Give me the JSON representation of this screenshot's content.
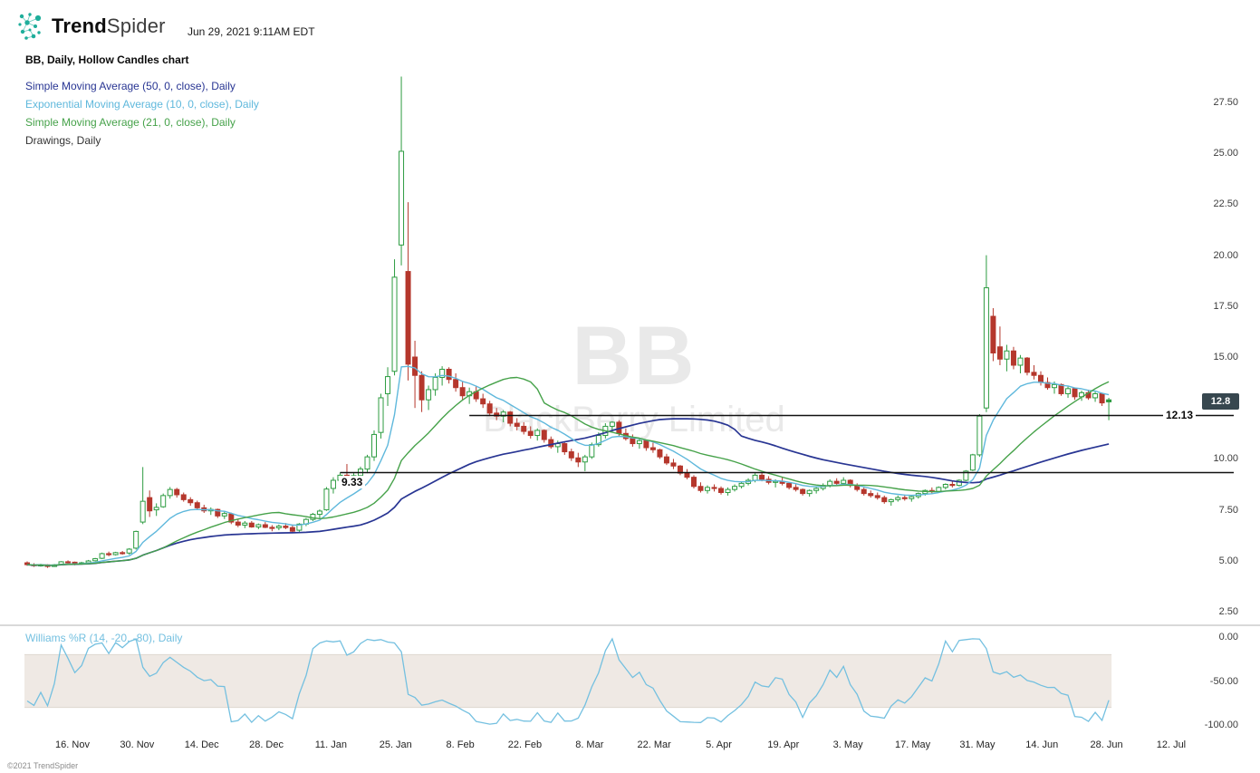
{
  "header": {
    "brand_bold": "Trend",
    "brand_light": "Spider",
    "timestamp": "Jun 29, 2021 9:11AM EDT"
  },
  "footer": {
    "copyright": "©2021 TrendSpider"
  },
  "colors": {
    "up": "#2d9c41",
    "down": "#b5372c",
    "drawing": "#111111",
    "wr_line": "#74c0e0",
    "wr_band": "#efe9e4",
    "tag_bg": "#37474f",
    "brand": "#1fae9b",
    "watermark": "#e9e9e9"
  },
  "chart_data": {
    "type": "candlestick",
    "style": "Hollow Candles",
    "symbol": "BB",
    "company": "BlackBerry Limited",
    "timeframe": "Daily",
    "title": "BB, Daily, Hollow Candles chart",
    "legend": [
      {
        "label": "Simple Moving Average (50, 0, close), Daily",
        "color": "#283593",
        "type": "sma",
        "period": 50
      },
      {
        "label": "Exponential Moving Average (10, 0, close), Daily",
        "color": "#5fb8dc",
        "type": "ema",
        "period": 10
      },
      {
        "label": "Simple Moving Average (21, 0, close), Daily",
        "color": "#46a24a",
        "type": "sma",
        "period": 21
      },
      {
        "label": "Drawings, Daily",
        "color": "#333333",
        "type": "drawings"
      }
    ],
    "ylim": [
      2.5,
      27.5
    ],
    "y_tick_labels": [
      "27.50",
      "25.00",
      "22.50",
      "20.00",
      "17.50",
      "15.00",
      "10.00",
      "7.50",
      "5.00",
      "2.50"
    ],
    "y_tick_values": [
      27.5,
      25,
      22.5,
      20,
      17.5,
      15,
      10,
      7.5,
      5,
      2.5
    ],
    "x_tick_labels": [
      "16. Nov",
      "30. Nov",
      "14. Dec",
      "28. Dec",
      "11. Jan",
      "25. Jan",
      "8. Feb",
      "22. Feb",
      "8. Mar",
      "22. Mar",
      "5. Apr",
      "19. Apr",
      "3. May",
      "17. May",
      "31. May",
      "14. Jun",
      "28. Jun",
      "12. Jul"
    ],
    "last_price": 12.8,
    "last_price_label": "12.8",
    "drawings": [
      {
        "label": "12.13",
        "level": 12.13,
        "from_index": 65
      },
      {
        "label": "9.33",
        "level": 9.33,
        "from_index": 46
      }
    ],
    "indicator": {
      "label": "Williams %R (14, -20, -80), Daily",
      "type": "williams_r",
      "period": 14,
      "band": [
        -20,
        -80
      ],
      "ylim": [
        0,
        -100
      ],
      "y_tick_labels": [
        "0.00",
        "-50.00",
        "-100.00"
      ],
      "y_tick_values": [
        0,
        -50,
        -100
      ]
    },
    "candles": [
      [
        4.9,
        4.97,
        4.75,
        4.81
      ],
      [
        4.81,
        4.88,
        4.7,
        4.76
      ],
      [
        4.76,
        4.85,
        4.71,
        4.8
      ],
      [
        4.8,
        4.83,
        4.65,
        4.72
      ],
      [
        4.72,
        4.84,
        4.7,
        4.8
      ],
      [
        4.82,
        4.98,
        4.8,
        4.95
      ],
      [
        4.95,
        5.02,
        4.86,
        4.93
      ],
      [
        4.93,
        4.96,
        4.78,
        4.87
      ],
      [
        4.87,
        4.95,
        4.81,
        4.9
      ],
      [
        4.9,
        5.04,
        4.88,
        4.99
      ],
      [
        5.0,
        5.14,
        4.96,
        5.1
      ],
      [
        5.12,
        5.4,
        5.08,
        5.35
      ],
      [
        5.35,
        5.45,
        5.22,
        5.3
      ],
      [
        5.3,
        5.44,
        5.26,
        5.4
      ],
      [
        5.4,
        5.48,
        5.3,
        5.38
      ],
      [
        5.38,
        5.62,
        5.3,
        5.57
      ],
      [
        5.62,
        6.48,
        5.55,
        6.44
      ],
      [
        6.9,
        9.6,
        6.8,
        7.92
      ],
      [
        8.1,
        8.45,
        7.15,
        7.45
      ],
      [
        7.5,
        7.82,
        7.2,
        7.62
      ],
      [
        7.65,
        8.3,
        7.6,
        8.2
      ],
      [
        8.2,
        8.62,
        8.05,
        8.5
      ],
      [
        8.5,
        8.58,
        8.1,
        8.24
      ],
      [
        8.24,
        8.35,
        7.9,
        8.0
      ],
      [
        8.0,
        8.12,
        7.7,
        7.85
      ],
      [
        7.85,
        7.95,
        7.5,
        7.6
      ],
      [
        7.6,
        7.75,
        7.35,
        7.45
      ],
      [
        7.45,
        7.62,
        7.25,
        7.52
      ],
      [
        7.52,
        7.56,
        7.1,
        7.2
      ],
      [
        7.2,
        7.42,
        7.05,
        7.32
      ],
      [
        7.3,
        7.36,
        6.8,
        6.9
      ],
      [
        6.9,
        7.05,
        6.65,
        6.75
      ],
      [
        6.75,
        6.95,
        6.6,
        6.85
      ],
      [
        6.85,
        6.95,
        6.62,
        6.66
      ],
      [
        6.66,
        6.83,
        6.55,
        6.77
      ],
      [
        6.77,
        6.9,
        6.6,
        6.64
      ],
      [
        6.64,
        6.75,
        6.45,
        6.62
      ],
      [
        6.62,
        6.78,
        6.5,
        6.7
      ],
      [
        6.7,
        6.85,
        6.55,
        6.63
      ],
      [
        6.63,
        6.78,
        6.35,
        6.45
      ],
      [
        6.5,
        6.85,
        6.42,
        6.8
      ],
      [
        6.8,
        7.1,
        6.7,
        7.03
      ],
      [
        7.03,
        7.35,
        6.95,
        7.28
      ],
      [
        7.28,
        7.52,
        7.1,
        7.44
      ],
      [
        7.5,
        8.62,
        7.45,
        8.52
      ],
      [
        8.55,
        9.1,
        8.3,
        8.95
      ],
      [
        8.95,
        9.33,
        8.6,
        9.2
      ],
      [
        9.2,
        9.75,
        8.9,
        9.05
      ],
      [
        9.05,
        9.3,
        8.7,
        9.18
      ],
      [
        9.18,
        9.62,
        9.0,
        9.5
      ],
      [
        9.5,
        10.2,
        9.3,
        10.1
      ],
      [
        10.1,
        11.4,
        9.9,
        11.2
      ],
      [
        11.3,
        13.2,
        11.0,
        13.0
      ],
      [
        13.2,
        14.5,
        12.6,
        14.04
      ],
      [
        14.3,
        19.8,
        14.1,
        18.92
      ],
      [
        20.5,
        28.77,
        19.5,
        25.1
      ],
      [
        19.2,
        22.6,
        13.85,
        14.65
      ],
      [
        15.0,
        15.8,
        12.5,
        14.1
      ],
      [
        14.1,
        14.3,
        12.3,
        12.9
      ],
      [
        12.9,
        13.6,
        12.4,
        13.4
      ],
      [
        13.4,
        14.2,
        13.1,
        14.0
      ],
      [
        14.0,
        14.55,
        13.6,
        14.4
      ],
      [
        14.4,
        14.5,
        13.7,
        13.9
      ],
      [
        13.9,
        14.2,
        13.3,
        13.5
      ],
      [
        13.5,
        13.8,
        12.9,
        13.1
      ],
      [
        13.1,
        13.5,
        12.7,
        13.3
      ],
      [
        13.3,
        13.6,
        12.8,
        12.95
      ],
      [
        12.95,
        13.2,
        12.5,
        12.7
      ],
      [
        12.7,
        12.85,
        12.1,
        12.25
      ],
      [
        12.25,
        12.5,
        11.9,
        12.1
      ],
      [
        12.1,
        12.4,
        11.8,
        12.3
      ],
      [
        12.3,
        12.35,
        11.6,
        11.75
      ],
      [
        11.75,
        12.0,
        11.4,
        11.6
      ],
      [
        11.6,
        11.8,
        11.2,
        11.35
      ],
      [
        11.35,
        11.6,
        11.0,
        11.15
      ],
      [
        11.15,
        11.5,
        10.9,
        11.4
      ],
      [
        11.4,
        11.45,
        10.8,
        10.95
      ],
      [
        10.95,
        11.1,
        10.5,
        10.6
      ],
      [
        10.6,
        10.9,
        10.3,
        10.75
      ],
      [
        10.75,
        10.8,
        10.2,
        10.35
      ],
      [
        10.35,
        10.5,
        9.9,
        10.05
      ],
      [
        10.05,
        10.3,
        9.6,
        9.85
      ],
      [
        9.85,
        10.2,
        9.4,
        10.1
      ],
      [
        10.1,
        10.8,
        10.0,
        10.7
      ],
      [
        10.7,
        11.3,
        10.6,
        11.15
      ],
      [
        11.15,
        11.75,
        11.0,
        11.6
      ],
      [
        11.6,
        11.85,
        11.3,
        11.8
      ],
      [
        11.8,
        11.9,
        11.1,
        11.25
      ],
      [
        11.25,
        11.5,
        10.9,
        11.0
      ],
      [
        11.0,
        11.2,
        10.6,
        10.75
      ],
      [
        10.75,
        11.0,
        10.5,
        10.9
      ],
      [
        10.9,
        10.95,
        10.4,
        10.55
      ],
      [
        10.55,
        10.8,
        10.3,
        10.45
      ],
      [
        10.45,
        10.5,
        10.0,
        10.1
      ],
      [
        10.1,
        10.25,
        9.7,
        9.8
      ],
      [
        9.8,
        10.0,
        9.5,
        9.65
      ],
      [
        9.65,
        9.7,
        9.2,
        9.3
      ],
      [
        9.3,
        9.5,
        9.0,
        9.1
      ],
      [
        9.1,
        9.2,
        8.55,
        8.65
      ],
      [
        8.65,
        8.85,
        8.35,
        8.45
      ],
      [
        8.45,
        8.7,
        8.3,
        8.6
      ],
      [
        8.6,
        8.75,
        8.4,
        8.55
      ],
      [
        8.55,
        8.65,
        8.25,
        8.35
      ],
      [
        8.35,
        8.6,
        8.2,
        8.5
      ],
      [
        8.5,
        8.75,
        8.4,
        8.65
      ],
      [
        8.65,
        8.9,
        8.55,
        8.8
      ],
      [
        8.8,
        9.05,
        8.7,
        8.95
      ],
      [
        8.95,
        9.3,
        8.85,
        9.2
      ],
      [
        9.2,
        9.35,
        8.9,
        9.0
      ],
      [
        9.0,
        9.15,
        8.75,
        8.85
      ],
      [
        8.85,
        9.0,
        8.6,
        8.9
      ],
      [
        8.9,
        9.1,
        8.7,
        8.8
      ],
      [
        8.8,
        8.85,
        8.5,
        8.6
      ],
      [
        8.6,
        8.75,
        8.4,
        8.5
      ],
      [
        8.5,
        8.55,
        8.2,
        8.3
      ],
      [
        8.3,
        8.5,
        8.15,
        8.45
      ],
      [
        8.45,
        8.65,
        8.3,
        8.55
      ],
      [
        8.55,
        8.8,
        8.45,
        8.7
      ],
      [
        8.7,
        9.0,
        8.6,
        8.9
      ],
      [
        8.9,
        9.05,
        8.7,
        8.8
      ],
      [
        8.8,
        9.1,
        8.7,
        8.95
      ],
      [
        8.95,
        9.0,
        8.6,
        8.7
      ],
      [
        8.7,
        8.8,
        8.4,
        8.5
      ],
      [
        8.5,
        8.6,
        8.2,
        8.3
      ],
      [
        8.3,
        8.45,
        8.1,
        8.2
      ],
      [
        8.2,
        8.35,
        8.0,
        8.1
      ],
      [
        8.1,
        8.2,
        7.8,
        7.9
      ],
      [
        7.9,
        8.05,
        7.7,
        8.0
      ],
      [
        8.0,
        8.2,
        7.9,
        8.1
      ],
      [
        8.1,
        8.25,
        7.95,
        8.05
      ],
      [
        8.05,
        8.2,
        7.9,
        8.15
      ],
      [
        8.15,
        8.35,
        8.05,
        8.3
      ],
      [
        8.3,
        8.5,
        8.2,
        8.45
      ],
      [
        8.45,
        8.6,
        8.3,
        8.4
      ],
      [
        8.4,
        8.65,
        8.35,
        8.6
      ],
      [
        8.6,
        8.8,
        8.5,
        8.75
      ],
      [
        8.75,
        8.9,
        8.6,
        8.7
      ],
      [
        8.7,
        9.0,
        8.65,
        8.95
      ],
      [
        8.95,
        9.45,
        8.9,
        9.4
      ],
      [
        9.45,
        10.25,
        9.4,
        10.2
      ],
      [
        10.2,
        12.2,
        10.1,
        12.1
      ],
      [
        12.5,
        20.0,
        12.3,
        18.4
      ],
      [
        17.0,
        17.4,
        14.8,
        15.2
      ],
      [
        15.5,
        16.5,
        14.6,
        14.9
      ],
      [
        14.9,
        15.6,
        14.3,
        15.3
      ],
      [
        15.3,
        15.5,
        14.4,
        14.6
      ],
      [
        14.6,
        15.1,
        14.2,
        14.95
      ],
      [
        14.95,
        15.0,
        14.1,
        14.25
      ],
      [
        14.25,
        14.6,
        13.9,
        14.1
      ],
      [
        14.1,
        14.3,
        13.6,
        13.75
      ],
      [
        13.75,
        14.0,
        13.4,
        13.5
      ],
      [
        13.5,
        13.8,
        13.2,
        13.65
      ],
      [
        13.65,
        13.7,
        13.1,
        13.2
      ],
      [
        13.2,
        13.55,
        13.0,
        13.45
      ],
      [
        13.45,
        13.5,
        12.9,
        13.05
      ],
      [
        13.05,
        13.35,
        12.85,
        13.25
      ],
      [
        13.25,
        13.4,
        12.9,
        13.0
      ],
      [
        13.0,
        13.3,
        12.8,
        13.2
      ],
      [
        13.2,
        13.25,
        12.6,
        12.75
      ],
      [
        12.9,
        13.0,
        11.9,
        12.8
      ]
    ]
  }
}
